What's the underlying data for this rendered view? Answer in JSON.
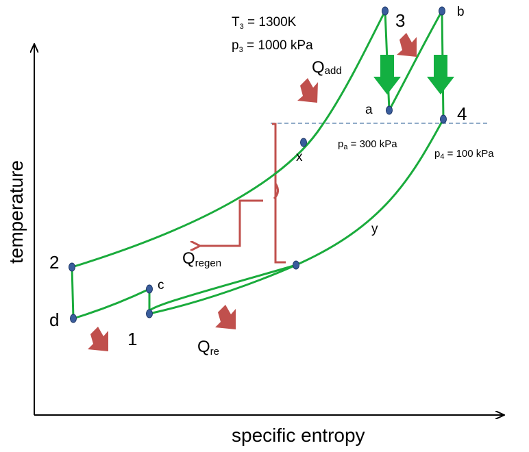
{
  "axes": {
    "x_label": "specific entropy",
    "y_label": "temperature"
  },
  "state_labels": {
    "s1": "1",
    "s2": "2",
    "s3": "3",
    "s4": "4",
    "a": "a",
    "b": "b",
    "c": "c",
    "d": "d",
    "x": "x",
    "y": "y"
  },
  "conditions": {
    "t3_sym": "T",
    "t3_sub": "3",
    "t3_value": " = 1300K",
    "p3_sym": "p",
    "p3_sub": "3",
    "p3_value": " = 1000 kPa",
    "pa_sym": "p",
    "pa_sub": "a",
    "pa_value": " = 300 kPa",
    "p4_sym": "p",
    "p4_sub": "4",
    "p4_value": " = 100 kPa"
  },
  "heat_labels": {
    "add_sym": "Q",
    "add_sub": "add",
    "regen_sym": "Q",
    "regen_sub": "regen",
    "re_sym": "Q",
    "re_sub": "re"
  },
  "colors": {
    "process": "#1aab3c",
    "state_point": "#3a5d9c",
    "state_point_stroke": "#1c3566",
    "arrow": "#c0504d",
    "expansion_arrow": "#13b041",
    "pressure_line": "#6b8fb5",
    "axis": "#000000"
  }
}
